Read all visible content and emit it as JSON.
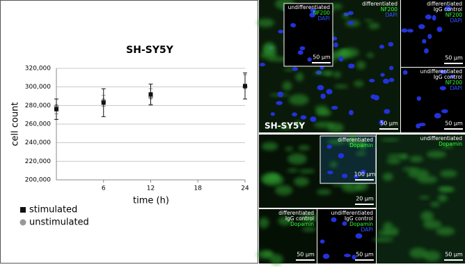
{
  "chart_data": {
    "type": "scatter",
    "title": "SH-SY5Y",
    "y_label": "cell count",
    "x_label": "time (h)",
    "xlim": [
      0,
      24
    ],
    "xticks": [
      6,
      12,
      18,
      24
    ],
    "ylim": [
      200000,
      320000
    ],
    "yticks": [
      {
        "value": 200000,
        "label": "200,000"
      },
      {
        "value": 220000,
        "label": "220,000"
      },
      {
        "value": 240000,
        "label": "240,000"
      },
      {
        "value": 260000,
        "label": "260,000"
      },
      {
        "value": 280000,
        "label": "280,000"
      },
      {
        "value": 300000,
        "label": "300,000"
      },
      {
        "value": 320000,
        "label": "320,000"
      }
    ],
    "grid": true,
    "series": [
      {
        "name": "unstimulated",
        "color": "#999999",
        "marker": "circle",
        "x": [
          0,
          6,
          12,
          24
        ],
        "values": [
          279000,
          285000,
          289000,
          300000
        ],
        "errors": [
          8000,
          6000,
          9000,
          13000
        ]
      },
      {
        "name": "stimulated",
        "color": "#111111",
        "marker": "square",
        "x": [
          0,
          6,
          12,
          24
        ],
        "values": [
          276000,
          283000,
          292000,
          301000
        ],
        "errors": [
          11000,
          15000,
          11000,
          14000
        ]
      }
    ]
  },
  "panels": [
    {
      "labels": [
        {
          "text": "differentiated",
          "color": "#ffffff"
        },
        {
          "text": "NF200",
          "color": "#33ff33"
        },
        {
          "text": "DAPI",
          "color": "#3355ff"
        }
      ],
      "scale_bar": "50 µm",
      "overlay_label": "SH-SY5Y"
    },
    {
      "labels": [
        {
          "text": "undifferentiated",
          "color": "#ffffff"
        },
        {
          "text": "NF200",
          "color": "#33ff33"
        },
        {
          "text": "DAPI",
          "color": "#3355ff"
        }
      ],
      "scale_bar": "50 µm"
    },
    {
      "labels": [
        {
          "text": "differentiated",
          "color": "#ffffff"
        },
        {
          "text": "IgG control",
          "color": "#ffffff"
        },
        {
          "text": "NF200",
          "color": "#33ff33"
        },
        {
          "text": "DAPI",
          "color": "#3355ff"
        }
      ],
      "scale_bar": "50 µm"
    },
    {
      "labels": [
        {
          "text": "undifferentiated",
          "color": "#ffffff"
        },
        {
          "text": "IgG control",
          "color": "#ffffff"
        },
        {
          "text": "NF200",
          "color": "#33ff33"
        },
        {
          "text": "DAPI",
          "color": "#3355ff"
        }
      ],
      "scale_bar": "50 µm"
    },
    {
      "labels": [],
      "scale_bar": "20 µm"
    },
    {
      "labels": [
        {
          "text": "differentiated",
          "color": "#ffffff"
        },
        {
          "text": "Dopamin",
          "color": "#33ff33"
        }
      ],
      "scale_bar": "100 µm"
    },
    {
      "labels": [
        {
          "text": "undifferentiated",
          "color": "#ffffff"
        },
        {
          "text": "Dopamin",
          "color": "#33ff33"
        }
      ],
      "scale_bar": "50 µm"
    },
    {
      "labels": [
        {
          "text": "differentiated",
          "color": "#ffffff"
        },
        {
          "text": "IgG control",
          "color": "#ffffff"
        },
        {
          "text": "Dopamin",
          "color": "#33ff33"
        }
      ],
      "scale_bar": "50 µm"
    },
    {
      "labels": [
        {
          "text": "undifferentiated",
          "color": "#ffffff"
        },
        {
          "text": "IgG control",
          "color": "#ffffff"
        },
        {
          "text": "Dopamin",
          "color": "#33ff33"
        },
        {
          "text": "DAPI",
          "color": "#3355ff"
        }
      ],
      "scale_bar": "50 µm"
    }
  ]
}
